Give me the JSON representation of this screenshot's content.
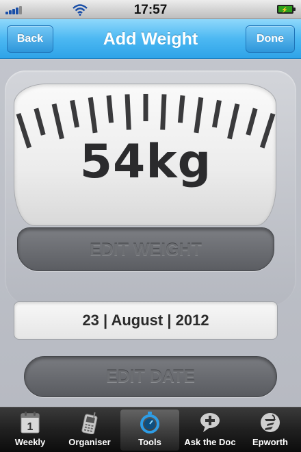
{
  "status_bar": {
    "time": "17:57"
  },
  "nav": {
    "title": "Add Weight",
    "back_label": "Back",
    "done_label": "Done"
  },
  "weight": {
    "display": "54kg"
  },
  "buttons": {
    "edit_weight": "EDIT WEIGHT",
    "edit_date": "EDIT DATE"
  },
  "date": {
    "display": "23 | August | 2012"
  },
  "tabs": [
    {
      "label": "Weekly",
      "icon": "calendar-icon"
    },
    {
      "label": "Organiser",
      "icon": "phone-icon"
    },
    {
      "label": "Tools",
      "icon": "stopwatch-icon",
      "active": true
    },
    {
      "label": "Ask the Doc",
      "icon": "speech-plus-icon"
    },
    {
      "label": "Epworth",
      "icon": "epworth-logo-icon"
    }
  ],
  "colors": {
    "nav_accent": "#2ea3e8",
    "tab_bar": "#1a1a1a",
    "battery": "#2fa01c"
  }
}
